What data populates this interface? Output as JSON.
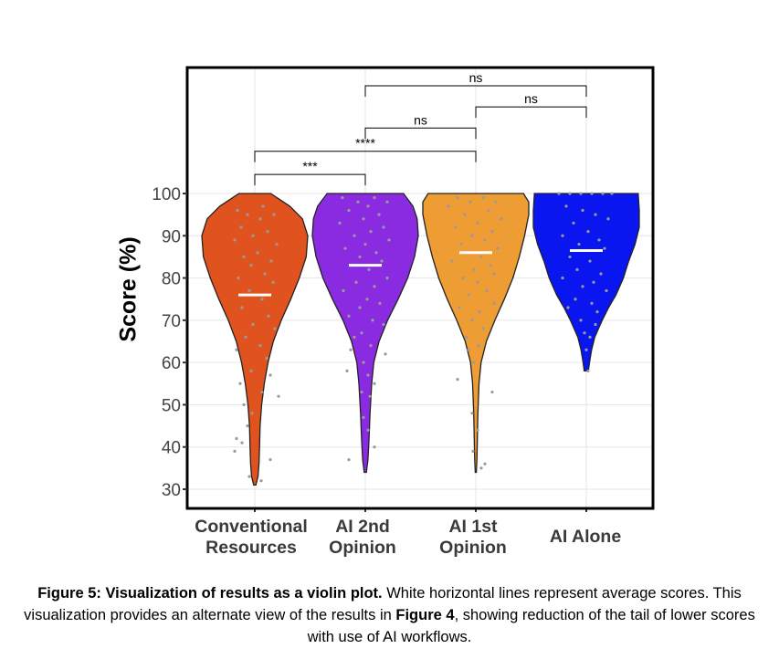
{
  "chart_data": {
    "type": "violin",
    "ylabel": "Score (%)",
    "ylim": [
      25,
      133
    ],
    "yticks": [
      30,
      40,
      50,
      60,
      70,
      80,
      90,
      100
    ],
    "grid": true,
    "categories": [
      {
        "label_lines": [
          "Conventional",
          "Resources"
        ],
        "color": "#e0531f",
        "mean": 76,
        "min": 31,
        "max": 100,
        "density": [
          [
            31,
            0.02
          ],
          [
            33,
            0.06
          ],
          [
            36,
            0.08
          ],
          [
            40,
            0.09
          ],
          [
            45,
            0.1
          ],
          [
            50,
            0.13
          ],
          [
            55,
            0.18
          ],
          [
            60,
            0.25
          ],
          [
            65,
            0.35
          ],
          [
            70,
            0.5
          ],
          [
            75,
            0.68
          ],
          [
            80,
            0.84
          ],
          [
            85,
            0.97
          ],
          [
            90,
            1.0
          ],
          [
            94,
            0.9
          ],
          [
            97,
            0.66
          ],
          [
            100,
            0.3
          ]
        ],
        "points": [
          [
            97,
            9
          ],
          [
            96,
            -19
          ],
          [
            95,
            21
          ],
          [
            95,
            -8
          ],
          [
            94,
            6
          ],
          [
            92,
            -15
          ],
          [
            91,
            14
          ],
          [
            90,
            -2
          ],
          [
            89,
            -22
          ],
          [
            88,
            24
          ],
          [
            86,
            3
          ],
          [
            85,
            -12
          ],
          [
            84,
            18
          ],
          [
            83,
            -4
          ],
          [
            81,
            11
          ],
          [
            80,
            -18
          ],
          [
            79,
            20
          ],
          [
            77,
            -6
          ],
          [
            75,
            8
          ],
          [
            73,
            -14
          ],
          [
            71,
            15
          ],
          [
            69,
            -2
          ],
          [
            68,
            22
          ],
          [
            66,
            -10
          ],
          [
            64,
            6
          ],
          [
            63,
            -20
          ],
          [
            61,
            13
          ],
          [
            58,
            -4
          ],
          [
            57,
            17
          ],
          [
            55,
            -16
          ],
          [
            53,
            8
          ],
          [
            52,
            26
          ],
          [
            50,
            -12
          ],
          [
            48,
            -3
          ],
          [
            45,
            -8
          ],
          [
            42,
            -20
          ],
          [
            41,
            -14
          ],
          [
            39,
            -22
          ],
          [
            37,
            17
          ],
          [
            33,
            -6
          ],
          [
            32,
            7
          ]
        ]
      },
      {
        "label_lines": [
          "AI 2nd",
          "Opinion"
        ],
        "color": "#8a2be2",
        "mean": 83,
        "min": 34,
        "max": 100,
        "density": [
          [
            34,
            0.02
          ],
          [
            37,
            0.05
          ],
          [
            42,
            0.07
          ],
          [
            48,
            0.09
          ],
          [
            55,
            0.12
          ],
          [
            60,
            0.16
          ],
          [
            65,
            0.26
          ],
          [
            70,
            0.42
          ],
          [
            75,
            0.62
          ],
          [
            80,
            0.8
          ],
          [
            85,
            0.93
          ],
          [
            90,
            1.0
          ],
          [
            94,
            0.98
          ],
          [
            97,
            0.9
          ],
          [
            100,
            0.72
          ]
        ],
        "points": [
          [
            99,
            -25
          ],
          [
            99,
            10
          ],
          [
            98,
            -8
          ],
          [
            98,
            24
          ],
          [
            97,
            3
          ],
          [
            96,
            -18
          ],
          [
            95,
            15
          ],
          [
            94,
            -2
          ],
          [
            93,
            -28
          ],
          [
            92,
            20
          ],
          [
            91,
            6
          ],
          [
            90,
            -12
          ],
          [
            89,
            26
          ],
          [
            88,
            0
          ],
          [
            87,
            -22
          ],
          [
            86,
            12
          ],
          [
            85,
            -6
          ],
          [
            84,
            18
          ],
          [
            83,
            -15
          ],
          [
            82,
            4
          ],
          [
            80,
            24
          ],
          [
            79,
            -10
          ],
          [
            78,
            10
          ],
          [
            77,
            -24
          ],
          [
            75,
            2
          ],
          [
            74,
            16
          ],
          [
            73,
            -6
          ],
          [
            71,
            -18
          ],
          [
            70,
            8
          ],
          [
            69,
            20
          ],
          [
            67,
            -4
          ],
          [
            66,
            -12
          ],
          [
            64,
            6
          ],
          [
            63,
            -16
          ],
          [
            62,
            22
          ],
          [
            60,
            -2
          ],
          [
            58,
            -20
          ],
          [
            57,
            3
          ],
          [
            55,
            10
          ],
          [
            53,
            -4
          ],
          [
            52,
            5
          ],
          [
            47,
            -2
          ],
          [
            44,
            3
          ],
          [
            40,
            10
          ],
          [
            37,
            -18
          ]
        ]
      },
      {
        "label_lines": [
          "AI 1st",
          "Opinion"
        ],
        "color": "#ee9d35",
        "mean": 86,
        "min": 34,
        "max": 100,
        "density": [
          [
            34,
            0.01
          ],
          [
            37,
            0.02
          ],
          [
            42,
            0.03
          ],
          [
            48,
            0.04
          ],
          [
            55,
            0.06
          ],
          [
            60,
            0.1
          ],
          [
            65,
            0.2
          ],
          [
            70,
            0.36
          ],
          [
            75,
            0.54
          ],
          [
            80,
            0.7
          ],
          [
            85,
            0.82
          ],
          [
            90,
            0.92
          ],
          [
            95,
            1.0
          ],
          [
            98,
            1.0
          ],
          [
            100,
            0.9
          ]
        ],
        "points": [
          [
            99,
            -20
          ],
          [
            99,
            8
          ],
          [
            98,
            22
          ],
          [
            98,
            -6
          ],
          [
            97,
            -30
          ],
          [
            96,
            14
          ],
          [
            95,
            -12
          ],
          [
            94,
            28
          ],
          [
            93,
            2
          ],
          [
            92,
            -22
          ],
          [
            91,
            18
          ],
          [
            90,
            -4
          ],
          [
            89,
            10
          ],
          [
            88,
            -16
          ],
          [
            87,
            24
          ],
          [
            86,
            -8
          ],
          [
            85,
            6
          ],
          [
            84,
            -26
          ],
          [
            83,
            16
          ],
          [
            82,
            -2
          ],
          [
            81,
            20
          ],
          [
            80,
            -14
          ],
          [
            79,
            2
          ],
          [
            77,
            12
          ],
          [
            76,
            -8
          ],
          [
            74,
            20
          ],
          [
            73,
            -18
          ],
          [
            72,
            4
          ],
          [
            70,
            -4
          ],
          [
            68,
            8
          ],
          [
            66,
            -10
          ],
          [
            64,
            3
          ],
          [
            63,
            -8
          ],
          [
            60,
            -2
          ],
          [
            56,
            -20
          ],
          [
            53,
            18
          ],
          [
            48,
            -4
          ],
          [
            44,
            2
          ],
          [
            39,
            -3
          ],
          [
            36,
            10
          ],
          [
            35,
            6
          ]
        ]
      },
      {
        "label_lines": [
          "AI Alone"
        ],
        "color": "#0a16f0",
        "mean": 86.5,
        "min": 58,
        "max": 100,
        "density": [
          [
            58,
            0.04
          ],
          [
            60,
            0.06
          ],
          [
            63,
            0.1
          ],
          [
            66,
            0.16
          ],
          [
            70,
            0.3
          ],
          [
            73,
            0.42
          ],
          [
            76,
            0.56
          ],
          [
            80,
            0.7
          ],
          [
            84,
            0.8
          ],
          [
            88,
            0.92
          ],
          [
            92,
            1.0
          ],
          [
            96,
            1.0
          ],
          [
            100,
            0.98
          ]
        ],
        "points": [
          [
            100,
            -30
          ],
          [
            100,
            -18
          ],
          [
            100,
            -6
          ],
          [
            100,
            6
          ],
          [
            100,
            18
          ],
          [
            100,
            28
          ],
          [
            97,
            -22
          ],
          [
            96,
            -4
          ],
          [
            95,
            10
          ],
          [
            94,
            24
          ],
          [
            93,
            -14
          ],
          [
            91,
            2
          ],
          [
            90,
            -26
          ],
          [
            89,
            14
          ],
          [
            88,
            -8
          ],
          [
            87,
            20
          ],
          [
            85,
            -18
          ],
          [
            84,
            4
          ],
          [
            82,
            -10
          ],
          [
            81,
            16
          ],
          [
            80,
            -26
          ],
          [
            79,
            8
          ],
          [
            78,
            -4
          ],
          [
            77,
            22
          ],
          [
            75,
            -12
          ],
          [
            74,
            6
          ],
          [
            73,
            -20
          ],
          [
            72,
            12
          ],
          [
            70,
            -6
          ],
          [
            69,
            10
          ],
          [
            67,
            -2
          ],
          [
            66,
            4
          ],
          [
            63,
            0
          ],
          [
            58,
            2
          ]
        ]
      }
    ],
    "significance": [
      {
        "from": 0,
        "to": 1,
        "y": 104.5,
        "label": "***"
      },
      {
        "from": 0,
        "to": 2,
        "y": 110,
        "label": "****"
      },
      {
        "from": 1,
        "to": 2,
        "y": 115.5,
        "label": "ns"
      },
      {
        "from": 2,
        "to": 3,
        "y": 120.5,
        "label": "ns"
      },
      {
        "from": 1,
        "to": 3,
        "y": 125.5,
        "label": "ns"
      }
    ]
  },
  "caption": {
    "lead": "Figure 5: Visualization of results as a violin plot.",
    "text1": " White horizontal lines represent average scores. This visualization provides an alternate view of the results in ",
    "ref": "Figure 4",
    "text2": ", showing reduction of the tail of lower scores with use of AI workflows."
  }
}
